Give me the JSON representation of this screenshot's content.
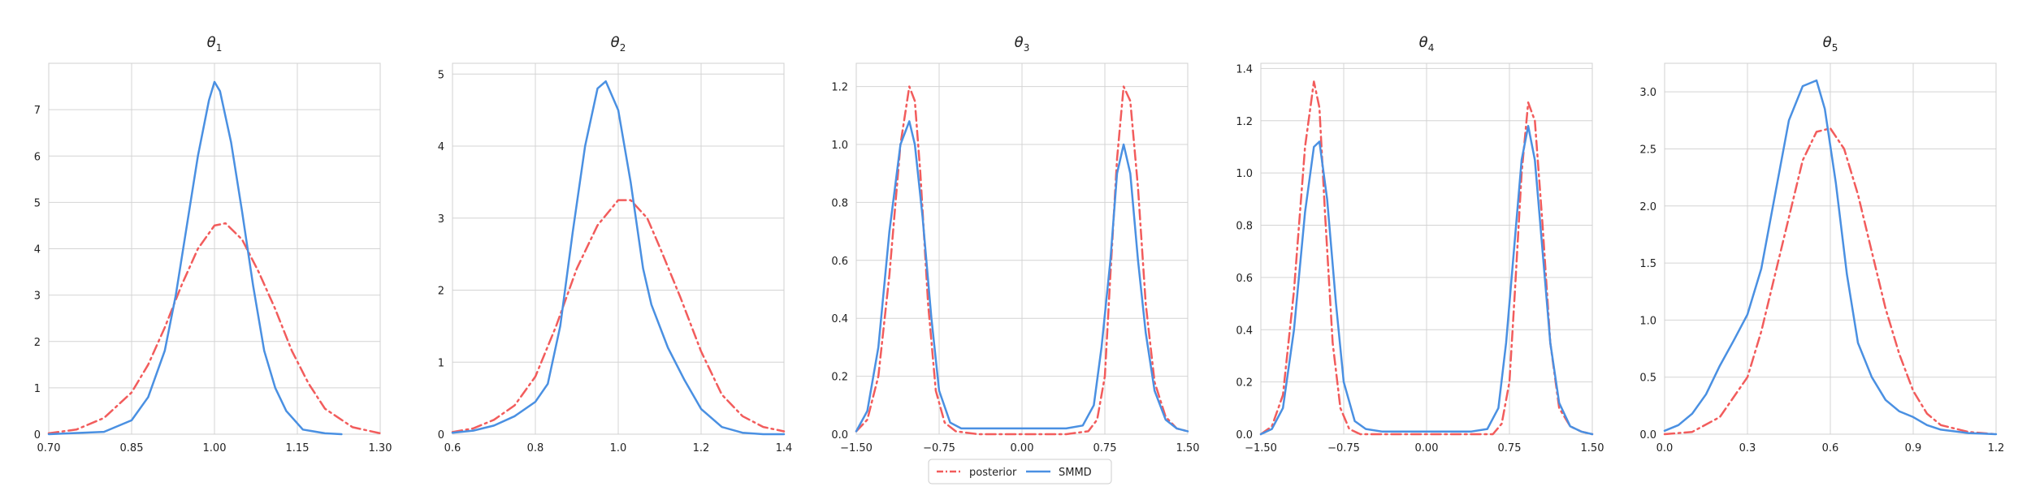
{
  "chart_data": [
    {
      "type": "line",
      "title_symbol": "θ",
      "title_subscript": "1",
      "xlim": [
        0.7,
        1.3
      ],
      "ylim": [
        0,
        8
      ],
      "xticks": [
        "0.70",
        "0.85",
        "1.00",
        "1.15",
        "1.30"
      ],
      "xtick_values": [
        0.7,
        0.85,
        1.0,
        1.15,
        1.3
      ],
      "yticks": [
        "0",
        "1",
        "2",
        "3",
        "4",
        "5",
        "6",
        "7"
      ],
      "ytick_values": [
        0,
        1,
        2,
        3,
        4,
        5,
        6,
        7
      ],
      "grid": true,
      "series": [
        {
          "name": "posterior",
          "color": "#f25c5c",
          "style": "dashdot",
          "x": [
            0.7,
            0.75,
            0.8,
            0.85,
            0.88,
            0.91,
            0.94,
            0.97,
            1.0,
            1.02,
            1.05,
            1.08,
            1.11,
            1.14,
            1.17,
            1.2,
            1.25,
            1.3
          ],
          "y": [
            0.02,
            0.1,
            0.35,
            0.9,
            1.5,
            2.3,
            3.2,
            4.0,
            4.5,
            4.55,
            4.2,
            3.5,
            2.7,
            1.8,
            1.1,
            0.55,
            0.15,
            0.02
          ]
        },
        {
          "name": "SMMD",
          "color": "#4a90e2",
          "style": "solid",
          "x": [
            0.7,
            0.8,
            0.85,
            0.88,
            0.91,
            0.93,
            0.95,
            0.97,
            0.99,
            1.0,
            1.01,
            1.03,
            1.05,
            1.07,
            1.09,
            1.11,
            1.13,
            1.16,
            1.2,
            1.23
          ],
          "y": [
            0.0,
            0.05,
            0.3,
            0.8,
            1.8,
            3.0,
            4.5,
            6.0,
            7.2,
            7.6,
            7.4,
            6.3,
            4.8,
            3.2,
            1.8,
            1.0,
            0.5,
            0.1,
            0.02,
            0.0
          ]
        }
      ]
    },
    {
      "type": "line",
      "title_symbol": "θ",
      "title_subscript": "2",
      "xlim": [
        0.6,
        1.4
      ],
      "ylim": [
        0,
        5.15
      ],
      "xticks": [
        "0.6",
        "0.8",
        "1.0",
        "1.2",
        "1.4"
      ],
      "xtick_values": [
        0.6,
        0.8,
        1.0,
        1.2,
        1.4
      ],
      "yticks": [
        "0",
        "1",
        "2",
        "3",
        "4",
        "5"
      ],
      "ytick_values": [
        0,
        1,
        2,
        3,
        4,
        5
      ],
      "grid": true,
      "series": [
        {
          "name": "posterior",
          "color": "#f25c5c",
          "style": "dashdot",
          "x": [
            0.6,
            0.65,
            0.7,
            0.75,
            0.8,
            0.85,
            0.9,
            0.95,
            1.0,
            1.03,
            1.07,
            1.1,
            1.15,
            1.2,
            1.25,
            1.3,
            1.35,
            1.4
          ],
          "y": [
            0.03,
            0.08,
            0.2,
            0.4,
            0.8,
            1.5,
            2.3,
            2.9,
            3.25,
            3.25,
            3.0,
            2.6,
            1.9,
            1.15,
            0.55,
            0.25,
            0.1,
            0.04
          ]
        },
        {
          "name": "SMMD",
          "color": "#4a90e2",
          "style": "solid",
          "x": [
            0.6,
            0.65,
            0.7,
            0.75,
            0.8,
            0.83,
            0.86,
            0.89,
            0.92,
            0.95,
            0.97,
            1.0,
            1.03,
            1.06,
            1.08,
            1.12,
            1.16,
            1.2,
            1.25,
            1.3,
            1.35,
            1.4
          ],
          "y": [
            0.02,
            0.05,
            0.12,
            0.25,
            0.45,
            0.7,
            1.5,
            2.8,
            4.0,
            4.8,
            4.9,
            4.5,
            3.5,
            2.3,
            1.8,
            1.2,
            0.75,
            0.35,
            0.1,
            0.02,
            0.0,
            0.0
          ]
        }
      ]
    },
    {
      "type": "line",
      "title_symbol": "θ",
      "title_subscript": "3",
      "xlim": [
        -1.5,
        1.5
      ],
      "ylim": [
        0,
        1.28
      ],
      "xticks": [
        "−1.50",
        "−0.75",
        "0.00",
        "0.75",
        "1.50"
      ],
      "xtick_values": [
        -1.5,
        -0.75,
        0.0,
        0.75,
        1.5
      ],
      "yticks": [
        "0.0",
        "0.2",
        "0.4",
        "0.6",
        "0.8",
        "1.0",
        "1.2"
      ],
      "ytick_values": [
        0.0,
        0.2,
        0.4,
        0.6,
        0.8,
        1.0,
        1.2
      ],
      "grid": true,
      "series": [
        {
          "name": "posterior",
          "color": "#f25c5c",
          "style": "dashdot",
          "x": [
            -1.5,
            -1.4,
            -1.3,
            -1.2,
            -1.1,
            -1.02,
            -0.97,
            -0.92,
            -0.85,
            -0.78,
            -0.7,
            -0.6,
            -0.4,
            0.0,
            0.4,
            0.6,
            0.68,
            0.75,
            0.8,
            0.86,
            0.92,
            0.98,
            1.05,
            1.12,
            1.2,
            1.3,
            1.4,
            1.5
          ],
          "y": [
            0.01,
            0.05,
            0.2,
            0.55,
            1.0,
            1.2,
            1.15,
            0.9,
            0.45,
            0.15,
            0.04,
            0.01,
            0.0,
            0.0,
            0.0,
            0.01,
            0.05,
            0.2,
            0.55,
            0.95,
            1.2,
            1.15,
            0.85,
            0.45,
            0.18,
            0.06,
            0.02,
            0.01
          ]
        },
        {
          "name": "SMMD",
          "color": "#4a90e2",
          "style": "solid",
          "x": [
            -1.5,
            -1.4,
            -1.3,
            -1.2,
            -1.1,
            -1.02,
            -0.97,
            -0.9,
            -0.82,
            -0.75,
            -0.65,
            -0.55,
            -0.4,
            0.0,
            0.4,
            0.55,
            0.65,
            0.72,
            0.8,
            0.86,
            0.92,
            0.98,
            1.05,
            1.12,
            1.2,
            1.3,
            1.4,
            1.5
          ],
          "y": [
            0.01,
            0.08,
            0.3,
            0.7,
            1.0,
            1.08,
            1.0,
            0.75,
            0.4,
            0.15,
            0.04,
            0.02,
            0.02,
            0.02,
            0.02,
            0.03,
            0.1,
            0.3,
            0.6,
            0.9,
            1.0,
            0.9,
            0.6,
            0.35,
            0.15,
            0.05,
            0.02,
            0.01
          ]
        }
      ]
    },
    {
      "type": "line",
      "title_symbol": "θ",
      "title_subscript": "4",
      "xlim": [
        -1.5,
        1.5
      ],
      "ylim": [
        0,
        1.42
      ],
      "xticks": [
        "−1.50",
        "−0.75",
        "0.00",
        "0.75",
        "1.50"
      ],
      "xtick_values": [
        -1.5,
        -0.75,
        0.0,
        0.75,
        1.5
      ],
      "yticks": [
        "0.0",
        "0.2",
        "0.4",
        "0.6",
        "0.8",
        "1.0",
        "1.2",
        "1.4"
      ],
      "ytick_values": [
        0.0,
        0.2,
        0.4,
        0.6,
        0.8,
        1.0,
        1.2,
        1.4
      ],
      "grid": true,
      "series": [
        {
          "name": "posterior",
          "color": "#f25c5c",
          "style": "dashdot",
          "x": [
            -1.5,
            -1.4,
            -1.3,
            -1.2,
            -1.1,
            -1.02,
            -0.97,
            -0.92,
            -0.85,
            -0.78,
            -0.7,
            -0.6,
            -0.4,
            0.0,
            0.4,
            0.6,
            0.68,
            0.75,
            0.8,
            0.86,
            0.92,
            0.98,
            1.05,
            1.12,
            1.2,
            1.3,
            1.4,
            1.5
          ],
          "y": [
            0.0,
            0.03,
            0.15,
            0.55,
            1.1,
            1.35,
            1.25,
            0.85,
            0.35,
            0.1,
            0.02,
            0.0,
            0.0,
            0.0,
            0.0,
            0.0,
            0.04,
            0.2,
            0.55,
            1.0,
            1.27,
            1.2,
            0.8,
            0.35,
            0.1,
            0.03,
            0.01,
            0.0
          ]
        },
        {
          "name": "SMMD",
          "color": "#4a90e2",
          "style": "solid",
          "x": [
            -1.5,
            -1.4,
            -1.3,
            -1.2,
            -1.1,
            -1.02,
            -0.97,
            -0.9,
            -0.82,
            -0.75,
            -0.65,
            -0.55,
            -0.4,
            0.0,
            0.4,
            0.55,
            0.65,
            0.72,
            0.8,
            0.86,
            0.92,
            0.98,
            1.05,
            1.12,
            1.2,
            1.3,
            1.4,
            1.5
          ],
          "y": [
            0.0,
            0.02,
            0.1,
            0.4,
            0.85,
            1.1,
            1.12,
            0.9,
            0.5,
            0.2,
            0.05,
            0.02,
            0.01,
            0.01,
            0.01,
            0.02,
            0.1,
            0.35,
            0.75,
            1.05,
            1.18,
            1.05,
            0.7,
            0.35,
            0.12,
            0.03,
            0.01,
            0.0
          ]
        }
      ]
    },
    {
      "type": "line",
      "title_symbol": "θ",
      "title_subscript": "5",
      "xlim": [
        0.0,
        1.2
      ],
      "ylim": [
        0,
        3.25
      ],
      "xticks": [
        "0.0",
        "0.3",
        "0.6",
        "0.9",
        "1.2"
      ],
      "xtick_values": [
        0.0,
        0.3,
        0.6,
        0.9,
        1.2
      ],
      "yticks": [
        "0.0",
        "0.5",
        "1.0",
        "1.5",
        "2.0",
        "2.5",
        "3.0"
      ],
      "ytick_values": [
        0.0,
        0.5,
        1.0,
        1.5,
        2.0,
        2.5,
        3.0
      ],
      "grid": true,
      "series": [
        {
          "name": "posterior",
          "color": "#f25c5c",
          "style": "dashdot",
          "x": [
            0.0,
            0.1,
            0.2,
            0.3,
            0.35,
            0.4,
            0.45,
            0.5,
            0.55,
            0.6,
            0.65,
            0.7,
            0.75,
            0.8,
            0.85,
            0.9,
            0.95,
            1.0,
            1.1,
            1.2
          ],
          "y": [
            0.0,
            0.02,
            0.15,
            0.5,
            0.9,
            1.4,
            1.9,
            2.4,
            2.65,
            2.68,
            2.5,
            2.1,
            1.6,
            1.1,
            0.7,
            0.38,
            0.18,
            0.08,
            0.02,
            0.0
          ]
        },
        {
          "name": "SMMD",
          "color": "#4a90e2",
          "style": "solid",
          "x": [
            0.0,
            0.05,
            0.1,
            0.15,
            0.2,
            0.25,
            0.3,
            0.35,
            0.4,
            0.45,
            0.5,
            0.55,
            0.58,
            0.62,
            0.66,
            0.7,
            0.75,
            0.8,
            0.85,
            0.9,
            0.95,
            1.0,
            1.1,
            1.2
          ],
          "y": [
            0.03,
            0.08,
            0.18,
            0.35,
            0.6,
            0.82,
            1.05,
            1.45,
            2.1,
            2.75,
            3.05,
            3.1,
            2.85,
            2.2,
            1.4,
            0.8,
            0.5,
            0.3,
            0.2,
            0.15,
            0.08,
            0.04,
            0.01,
            0.0
          ]
        }
      ]
    }
  ],
  "legend": {
    "placement": "bottom-center",
    "entries": [
      {
        "label": "posterior",
        "color": "#f25c5c",
        "style": "dashdot"
      },
      {
        "label": "SMMD",
        "color": "#4a90e2",
        "style": "solid"
      }
    ]
  }
}
